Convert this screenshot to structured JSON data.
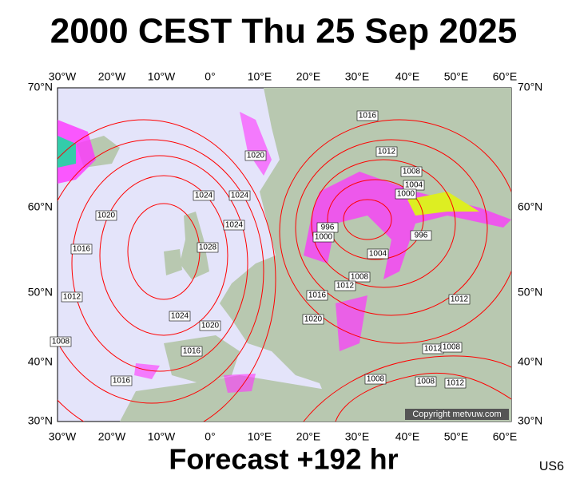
{
  "header": {
    "title": "2000 CEST Thu 25 Sep 2025"
  },
  "map": {
    "longitude_labels": [
      "30°W",
      "20°W",
      "10°W",
      "0°",
      "10°E",
      "20°E",
      "30°E",
      "40°E",
      "50°E",
      "60°E"
    ],
    "latitude_labels": [
      "70°N",
      "60°N",
      "50°N",
      "40°N",
      "30°N"
    ],
    "isobar_labels": [
      "1016",
      "1012",
      "1020",
      "1008",
      "1004",
      "1000",
      "1024",
      "1024",
      "1020",
      "1024",
      "996",
      "1000",
      "1028",
      "996",
      "1016",
      "1004",
      "1008",
      "1012",
      "1016",
      "1012",
      "1012",
      "1024",
      "1020",
      "1020",
      "1008",
      "1016",
      "1012",
      "1008",
      "1016",
      "1008",
      "1008",
      "1012"
    ],
    "copyright": "Copyright metvuw.com"
  },
  "footer": {
    "title": "Forecast +192 hr",
    "code": "US6"
  }
}
